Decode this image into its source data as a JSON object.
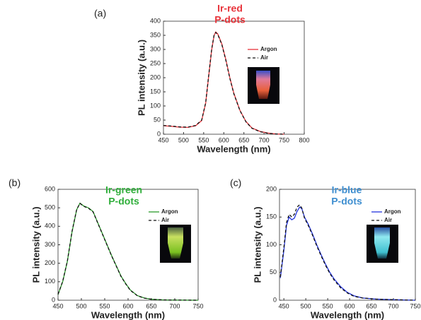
{
  "chart_data": [
    {
      "type": "line",
      "panel": "(a)",
      "title": [
        "Ir-red",
        "P-dots"
      ],
      "title_color": "#e8333a",
      "x_label": "Wavelength (nm)",
      "y_label": "PL intensity (a.u.)",
      "xlim": [
        450,
        800
      ],
      "xticks": [
        450,
        500,
        550,
        600,
        650,
        700,
        750,
        800
      ],
      "ylim": [
        0,
        400
      ],
      "yticks": [
        0,
        50,
        100,
        150,
        200,
        250,
        300,
        350,
        400
      ],
      "x": [
        450,
        470,
        490,
        510,
        530,
        545,
        555,
        562,
        570,
        576,
        580,
        585,
        595,
        605,
        615,
        625,
        640,
        655,
        670,
        690,
        710,
        730,
        750
      ],
      "series": [
        {
          "name": "Argon",
          "color": "#e8333a",
          "dash": false,
          "values": [
            30,
            28,
            25,
            24,
            30,
            48,
            110,
            200,
            300,
            350,
            362,
            355,
            320,
            265,
            200,
            145,
            85,
            45,
            22,
            10,
            4,
            1,
            0
          ]
        },
        {
          "name": "Air",
          "color": "#111111",
          "dash": true,
          "values": [
            31,
            29,
            26,
            25,
            31,
            50,
            112,
            202,
            302,
            352,
            360,
            353,
            318,
            262,
            198,
            143,
            84,
            44,
            21,
            9,
            3,
            1,
            0
          ]
        }
      ]
    },
    {
      "type": "line",
      "panel": "(b)",
      "title": [
        "Ir-green",
        "P-dots"
      ],
      "title_color": "#2fae3a",
      "x_label": "Wavelength (nm)",
      "y_label": "PL intensity (a.u.)",
      "xlim": [
        450,
        750
      ],
      "xticks": [
        450,
        500,
        550,
        600,
        650,
        700,
        750
      ],
      "ylim": [
        0,
        600
      ],
      "yticks": [
        0,
        100,
        200,
        300,
        400,
        500,
        600
      ],
      "x": [
        450,
        460,
        470,
        480,
        490,
        497,
        505,
        515,
        525,
        535,
        545,
        555,
        565,
        575,
        585,
        595,
        605,
        620,
        635,
        650,
        675,
        700,
        750
      ],
      "series": [
        {
          "name": "Argon",
          "color": "#2a9a2a",
          "dash": false,
          "values": [
            30,
            100,
            210,
            370,
            490,
            525,
            510,
            500,
            480,
            420,
            360,
            300,
            240,
            185,
            130,
            90,
            55,
            25,
            12,
            5,
            2,
            1,
            0
          ]
        },
        {
          "name": "Air",
          "color": "#111111",
          "dash": true,
          "values": [
            32,
            102,
            212,
            372,
            492,
            524,
            508,
            498,
            478,
            418,
            358,
            298,
            238,
            183,
            128,
            88,
            53,
            24,
            11,
            5,
            2,
            1,
            0
          ]
        }
      ]
    },
    {
      "type": "line",
      "panel": "(c)",
      "title": [
        "Ir-blue",
        "P-dots"
      ],
      "title_color": "#3e8ed0",
      "x_label": "Wavelength (nm)",
      "y_label": "PL intensity (a.u.)",
      "xlim": [
        440,
        750
      ],
      "xticks": [
        450,
        500,
        550,
        600,
        650,
        700,
        750
      ],
      "ylim": [
        0,
        200
      ],
      "yticks": [
        0,
        50,
        100,
        150,
        200
      ],
      "x": [
        442,
        450,
        456,
        462,
        468,
        474,
        480,
        486,
        491,
        497,
        505,
        515,
        525,
        535,
        545,
        555,
        565,
        580,
        595,
        610,
        630,
        660,
        700,
        750
      ],
      "series": [
        {
          "name": "Argon",
          "color": "#2233dd",
          "dash": false,
          "values": [
            40,
            90,
            135,
            150,
            145,
            148,
            160,
            168,
            165,
            150,
            138,
            120,
            100,
            82,
            65,
            50,
            38,
            24,
            14,
            8,
            4,
            2,
            1,
            0
          ]
        },
        {
          "name": "Air",
          "color": "#111111",
          "dash": true,
          "values": [
            42,
            95,
            140,
            155,
            150,
            155,
            168,
            172,
            166,
            148,
            136,
            118,
            98,
            80,
            63,
            48,
            36,
            22,
            13,
            7,
            4,
            2,
            1,
            0
          ]
        }
      ]
    }
  ]
}
